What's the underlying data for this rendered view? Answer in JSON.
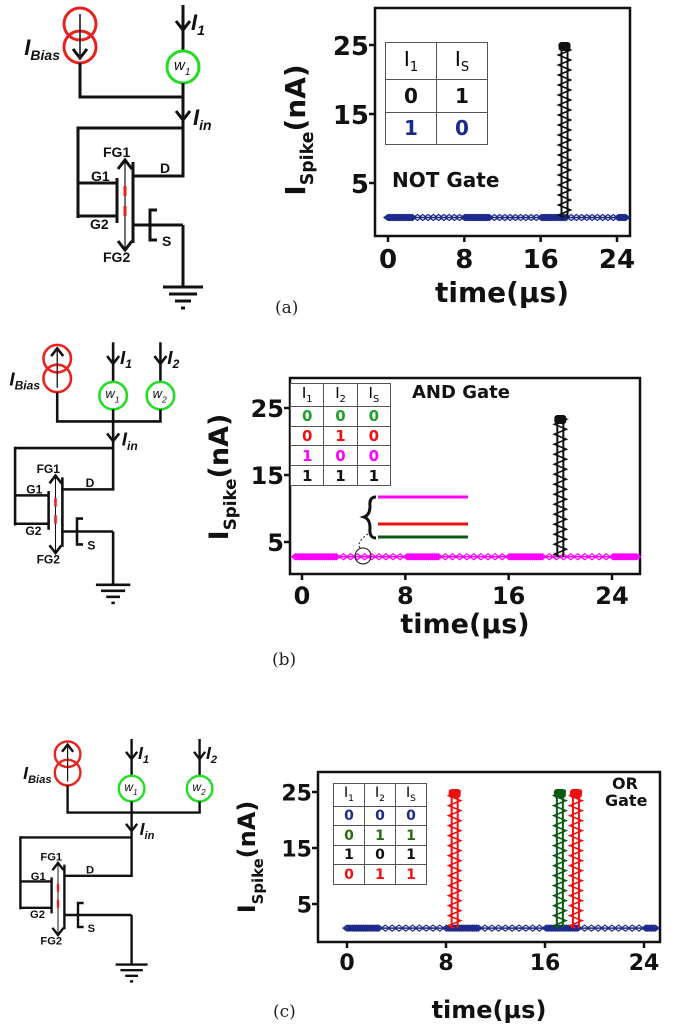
{
  "panels": [
    {
      "caption": "(a)",
      "circuit": {
        "bias_label": "I",
        "bias_sub": "Bias",
        "bias_color": "#e8231f",
        "bias_arrow": "down",
        "inputs": [
          {
            "label": "I",
            "sub": "1",
            "weight": "w",
            "weight_sub": "1"
          }
        ],
        "weight_color": "#22dd22",
        "in_label": "I",
        "in_sub": "in",
        "fg1": "FG1",
        "fg2": "FG2",
        "g1": "G1",
        "g2": "G2",
        "d": "D",
        "s": "S"
      },
      "gate_label": "NOT Gate",
      "truth_table": {
        "headers": [
          [
            "I",
            "1"
          ],
          [
            "I",
            "S"
          ]
        ],
        "rows": [
          {
            "values": [
              "0",
              "1"
            ],
            "color": "#111111"
          },
          {
            "values": [
              "1",
              "0"
            ],
            "color": "#1c2a8c"
          }
        ]
      }
    },
    {
      "caption": "(b)",
      "circuit": {
        "bias_label": "I",
        "bias_sub": "Bias",
        "bias_color": "#e8231f",
        "bias_arrow": "up",
        "inputs": [
          {
            "label": "I",
            "sub": "1",
            "weight": "w",
            "weight_sub": "1"
          },
          {
            "label": "I",
            "sub": "2",
            "weight": "w",
            "weight_sub": "2"
          }
        ],
        "weight_color": "#22dd22",
        "in_label": "I",
        "in_sub": "in",
        "fg1": "FG1",
        "fg2": "FG2",
        "g1": "G1",
        "g2": "G2",
        "d": "D",
        "s": "S"
      },
      "gate_label": "AND Gate",
      "truth_table": {
        "headers": [
          [
            "I",
            "1"
          ],
          [
            "I",
            "2"
          ],
          [
            "I",
            "S"
          ]
        ],
        "rows": [
          {
            "values": [
              "0",
              "0",
              "0"
            ],
            "color": "#1fa02a"
          },
          {
            "values": [
              "0",
              "1",
              "0"
            ],
            "color": "#ee1111"
          },
          {
            "values": [
              "1",
              "0",
              "0"
            ],
            "color": "#ff00ff"
          },
          {
            "values": [
              "1",
              "1",
              "1"
            ],
            "color": "#111111"
          }
        ]
      },
      "inset_lines": [
        "#ff00ff",
        "#ee1111",
        "#0b5a12"
      ]
    },
    {
      "caption": "(c)",
      "circuit": {
        "bias_label": "I",
        "bias_sub": "Bias",
        "bias_color": "#e8231f",
        "bias_arrow": "up",
        "inputs": [
          {
            "label": "I",
            "sub": "1",
            "weight": "w",
            "weight_sub": "1"
          },
          {
            "label": "I",
            "sub": "2",
            "weight": "w",
            "weight_sub": "2"
          }
        ],
        "weight_color": "#22dd22",
        "in_label": "I",
        "in_sub": "in",
        "fg1": "FG1",
        "fg2": "FG2",
        "g1": "G1",
        "g2": "G2",
        "d": "D",
        "s": "S"
      },
      "gate_label": "OR Gate",
      "truth_table": {
        "headers": [
          [
            "I",
            "1"
          ],
          [
            "I",
            "2"
          ],
          [
            "I",
            "S"
          ]
        ],
        "rows": [
          {
            "values": [
              "0",
              "0",
              "0"
            ],
            "color": "#1c2a8c"
          },
          {
            "values": [
              "0",
              "1",
              "1"
            ],
            "color": "#2a6a12"
          },
          {
            "values": [
              "1",
              "0",
              "1"
            ],
            "color": "#111111"
          },
          {
            "values": [
              "0",
              "1",
              "1"
            ],
            "color": "#ee1111"
          }
        ]
      }
    }
  ],
  "chart_data": [
    {
      "type": "line",
      "xlabel": "time(µs)",
      "ylabel": "I",
      "ylabel_sub": "Spike",
      "ylabel_unit": "(nA)",
      "xticks": [
        "0",
        "8",
        "16",
        "24"
      ],
      "yticks": [
        "25",
        "15",
        "5"
      ],
      "xlim": [
        -0.5,
        26
      ],
      "ylim": [
        -1,
        27
      ],
      "baseline": {
        "color": "#1c2a8c",
        "value": 0,
        "x_range": [
          0,
          25
        ]
      },
      "spikes": [
        {
          "t": 18.5,
          "peak": 25,
          "color": "#111111"
        }
      ]
    },
    {
      "type": "line",
      "xlabel": "time(µs)",
      "ylabel": "I",
      "ylabel_sub": "Spike",
      "ylabel_unit": "(nA)",
      "xticks": [
        "0",
        "8",
        "16",
        "24"
      ],
      "yticks": [
        "25",
        "15",
        "5"
      ],
      "xlim": [
        -0.9,
        26.2
      ],
      "ylim": [
        0.2,
        29.5
      ],
      "baseline": {
        "color": "#ff00ff",
        "value": 2.8,
        "x_range": [
          -0.5,
          26
        ]
      },
      "spikes": [
        {
          "t": 20.0,
          "peak": 23.5,
          "color": "#111111"
        }
      ]
    },
    {
      "type": "line",
      "xlabel": "time(µs)",
      "ylabel": "I",
      "ylabel_sub": "Spike",
      "ylabel_unit": "(nA)",
      "xticks": [
        "0",
        "8",
        "16",
        "24"
      ],
      "yticks": [
        "25",
        "15",
        "5"
      ],
      "xlim": [
        -2.3,
        25.3
      ],
      "ylim": [
        -1.8,
        27.8
      ],
      "baseline": {
        "color": "#1c2a8c",
        "value": 0.7,
        "x_range": [
          0,
          25
        ]
      },
      "spikes": [
        {
          "t": 8.7,
          "peak": 25,
          "color": "#ee1111"
        },
        {
          "t": 17.2,
          "peak": 25,
          "color": "#0b5a12"
        },
        {
          "t": 18.5,
          "peak": 25,
          "color": "#ee1111"
        }
      ]
    }
  ]
}
